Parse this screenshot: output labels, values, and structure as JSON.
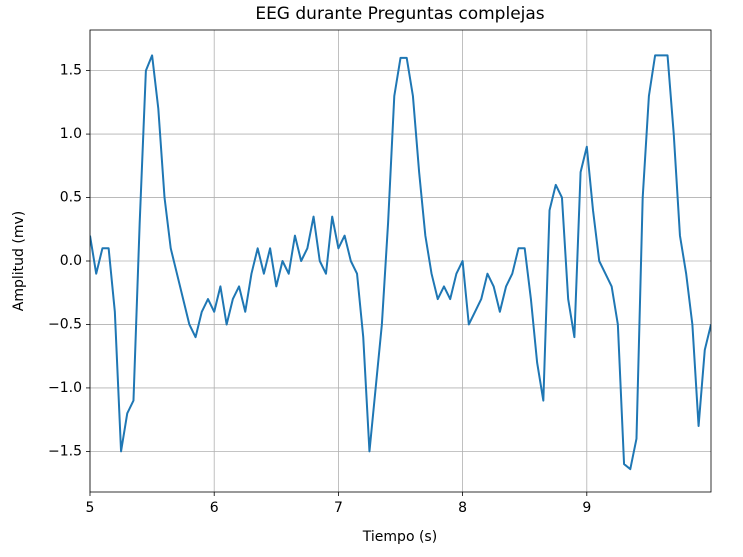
{
  "chart_data": {
    "type": "line",
    "title": "EEG durante Preguntas complejas",
    "x_label": "Tiempo (s)",
    "y_label": "Amplitud (mv)",
    "x": [
      5.0,
      5.05,
      5.1,
      5.15,
      5.2,
      5.25,
      5.3,
      5.35,
      5.4,
      5.45,
      5.5,
      5.55,
      5.6,
      5.65,
      5.7,
      5.75,
      5.8,
      5.85,
      5.9,
      5.95,
      6.0,
      6.05,
      6.1,
      6.15,
      6.2,
      6.25,
      6.3,
      6.35,
      6.4,
      6.45,
      6.5,
      6.55,
      6.6,
      6.65,
      6.7,
      6.75,
      6.8,
      6.85,
      6.9,
      6.95,
      7.0,
      7.05,
      7.1,
      7.15,
      7.2,
      7.25,
      7.3,
      7.35,
      7.4,
      7.45,
      7.5,
      7.55,
      7.6,
      7.65,
      7.7,
      7.75,
      7.8,
      7.85,
      7.9,
      7.95,
      8.0,
      8.05,
      8.1,
      8.15,
      8.2,
      8.25,
      8.3,
      8.35,
      8.4,
      8.45,
      8.5,
      8.55,
      8.6,
      8.65,
      8.7,
      8.75,
      8.8,
      8.85,
      8.9,
      8.95,
      9.0,
      9.05,
      9.1,
      9.15,
      9.2,
      9.25,
      9.3,
      9.35,
      9.4,
      9.45,
      9.5,
      9.55,
      9.6,
      9.65,
      9.7,
      9.75,
      9.8,
      9.85,
      9.9,
      9.95,
      10.0
    ],
    "series": [
      {
        "color": "#1f77b4",
        "values": [
          0.2,
          -0.1,
          0.1,
          0.1,
          -0.4,
          -1.5,
          -1.2,
          -1.1,
          0.3,
          1.5,
          1.62,
          1.2,
          0.5,
          0.1,
          -0.1,
          -0.3,
          -0.5,
          -0.6,
          -0.4,
          -0.3,
          -0.4,
          -0.2,
          -0.5,
          -0.3,
          -0.2,
          -0.4,
          -0.1,
          0.1,
          -0.1,
          0.1,
          -0.2,
          0.0,
          -0.1,
          0.2,
          0.0,
          0.1,
          0.35,
          0.0,
          -0.1,
          0.35,
          0.1,
          0.2,
          0.0,
          -0.1,
          -0.6,
          -1.5,
          -1.0,
          -0.5,
          0.3,
          1.3,
          1.6,
          1.6,
          1.3,
          0.7,
          0.2,
          -0.1,
          -0.3,
          -0.2,
          -0.3,
          -0.1,
          0.0,
          -0.5,
          -0.4,
          -0.3,
          -0.1,
          -0.2,
          -0.4,
          -0.2,
          -0.1,
          0.1,
          0.1,
          -0.3,
          -0.8,
          -1.1,
          0.4,
          0.6,
          0.5,
          -0.3,
          -0.6,
          0.7,
          0.9,
          0.4,
          0.0,
          -0.1,
          -0.2,
          -0.5,
          -1.6,
          -1.64,
          -1.4,
          0.5,
          1.3,
          1.62,
          1.62,
          1.62,
          1.0,
          0.2,
          -0.1,
          -0.5,
          -1.3,
          -0.7,
          -0.5
        ]
      }
    ],
    "xlim": [
      5,
      10
    ],
    "xticks": [
      5,
      6,
      7,
      8,
      9
    ],
    "ylim": [
      -1.82,
      1.82
    ],
    "yticks": [
      {
        "value": -1.5,
        "label": "−1.5"
      },
      {
        "value": -1.0,
        "label": "−1.0"
      },
      {
        "value": -0.5,
        "label": "−0.5"
      },
      {
        "value": 0,
        "label": "0.0"
      },
      0.5,
      {
        "value": 1.0,
        "label": "1.0"
      },
      1.5
    ],
    "grid": true
  }
}
